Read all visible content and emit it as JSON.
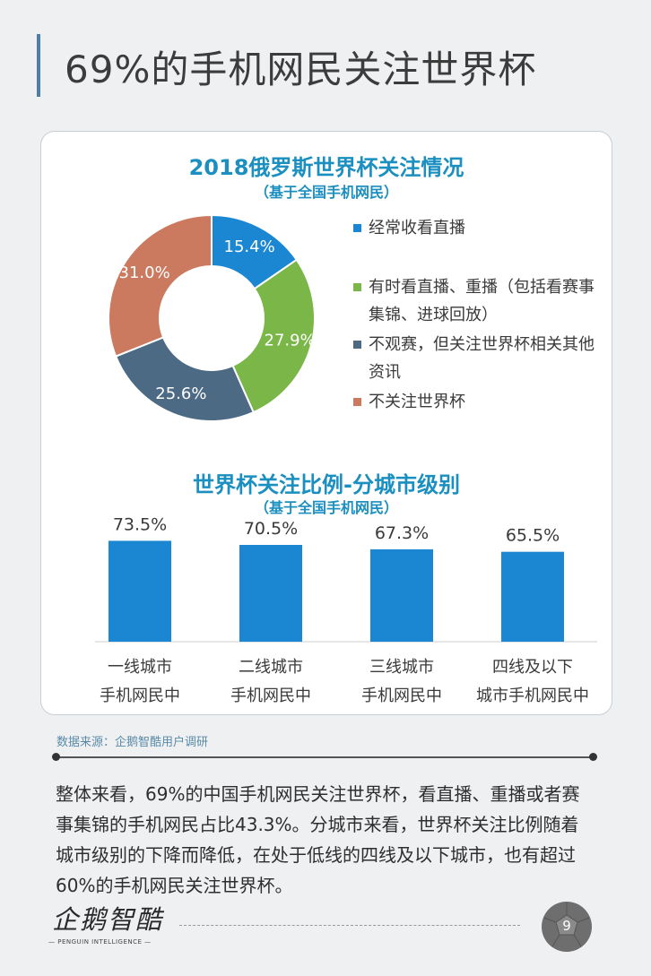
{
  "page": {
    "title": "69%的手机网民关注世界杯",
    "source": "数据来源：企鹅智酷用户调研",
    "summary": "整体来看，69%的中国手机网民关注世界杯，看直播、重播或者赛事集锦的手机网民占比43.3%。分城市来看，世界杯关注比例随着城市级别的下降而降低，在处于低线的四线及以下城市，也有超过60%的手机网民关注世界杯。",
    "logo_text": "企鹅智酷",
    "logo_subtitle": "— PENGUIN INTELLIGENCE —",
    "page_number": "9"
  },
  "chart_data": [
    {
      "type": "pie",
      "title": "2018俄罗斯世界杯关注情况",
      "subtitle": "（基于全国手机网民）",
      "legend_position": "right",
      "slices": [
        {
          "label": "经常收看直播",
          "value": 15.4,
          "display": "15.4%",
          "color": "#1b87d3"
        },
        {
          "label": "有时看直播、重播（包括看赛事集锦、进球回放）",
          "value": 27.9,
          "display": "27.9%",
          "color": "#7ab648"
        },
        {
          "label": "不观赛，但关注世界杯相关其他资讯",
          "value": 25.6,
          "display": "25.6%",
          "color": "#4d6a85"
        },
        {
          "label": "不关注世界杯",
          "value": 31.0,
          "display": "31.0%",
          "color": "#cc7a5f"
        }
      ]
    },
    {
      "type": "bar",
      "title": "世界杯关注比例-分城市级别",
      "subtitle": "（基于全国手机网民）",
      "categories": [
        [
          "一线城市",
          "手机网民中"
        ],
        [
          "二线城市",
          "手机网民中"
        ],
        [
          "三线城市",
          "手机网民中"
        ],
        [
          "四线及以下",
          "城市手机网民中"
        ]
      ],
      "values": [
        73.5,
        70.5,
        67.3,
        65.5
      ],
      "value_labels": [
        "73.5%",
        "70.5%",
        "67.3%",
        "65.5%"
      ],
      "color": "#1b87d3",
      "ylim": [
        0,
        85
      ],
      "grid": false
    }
  ]
}
